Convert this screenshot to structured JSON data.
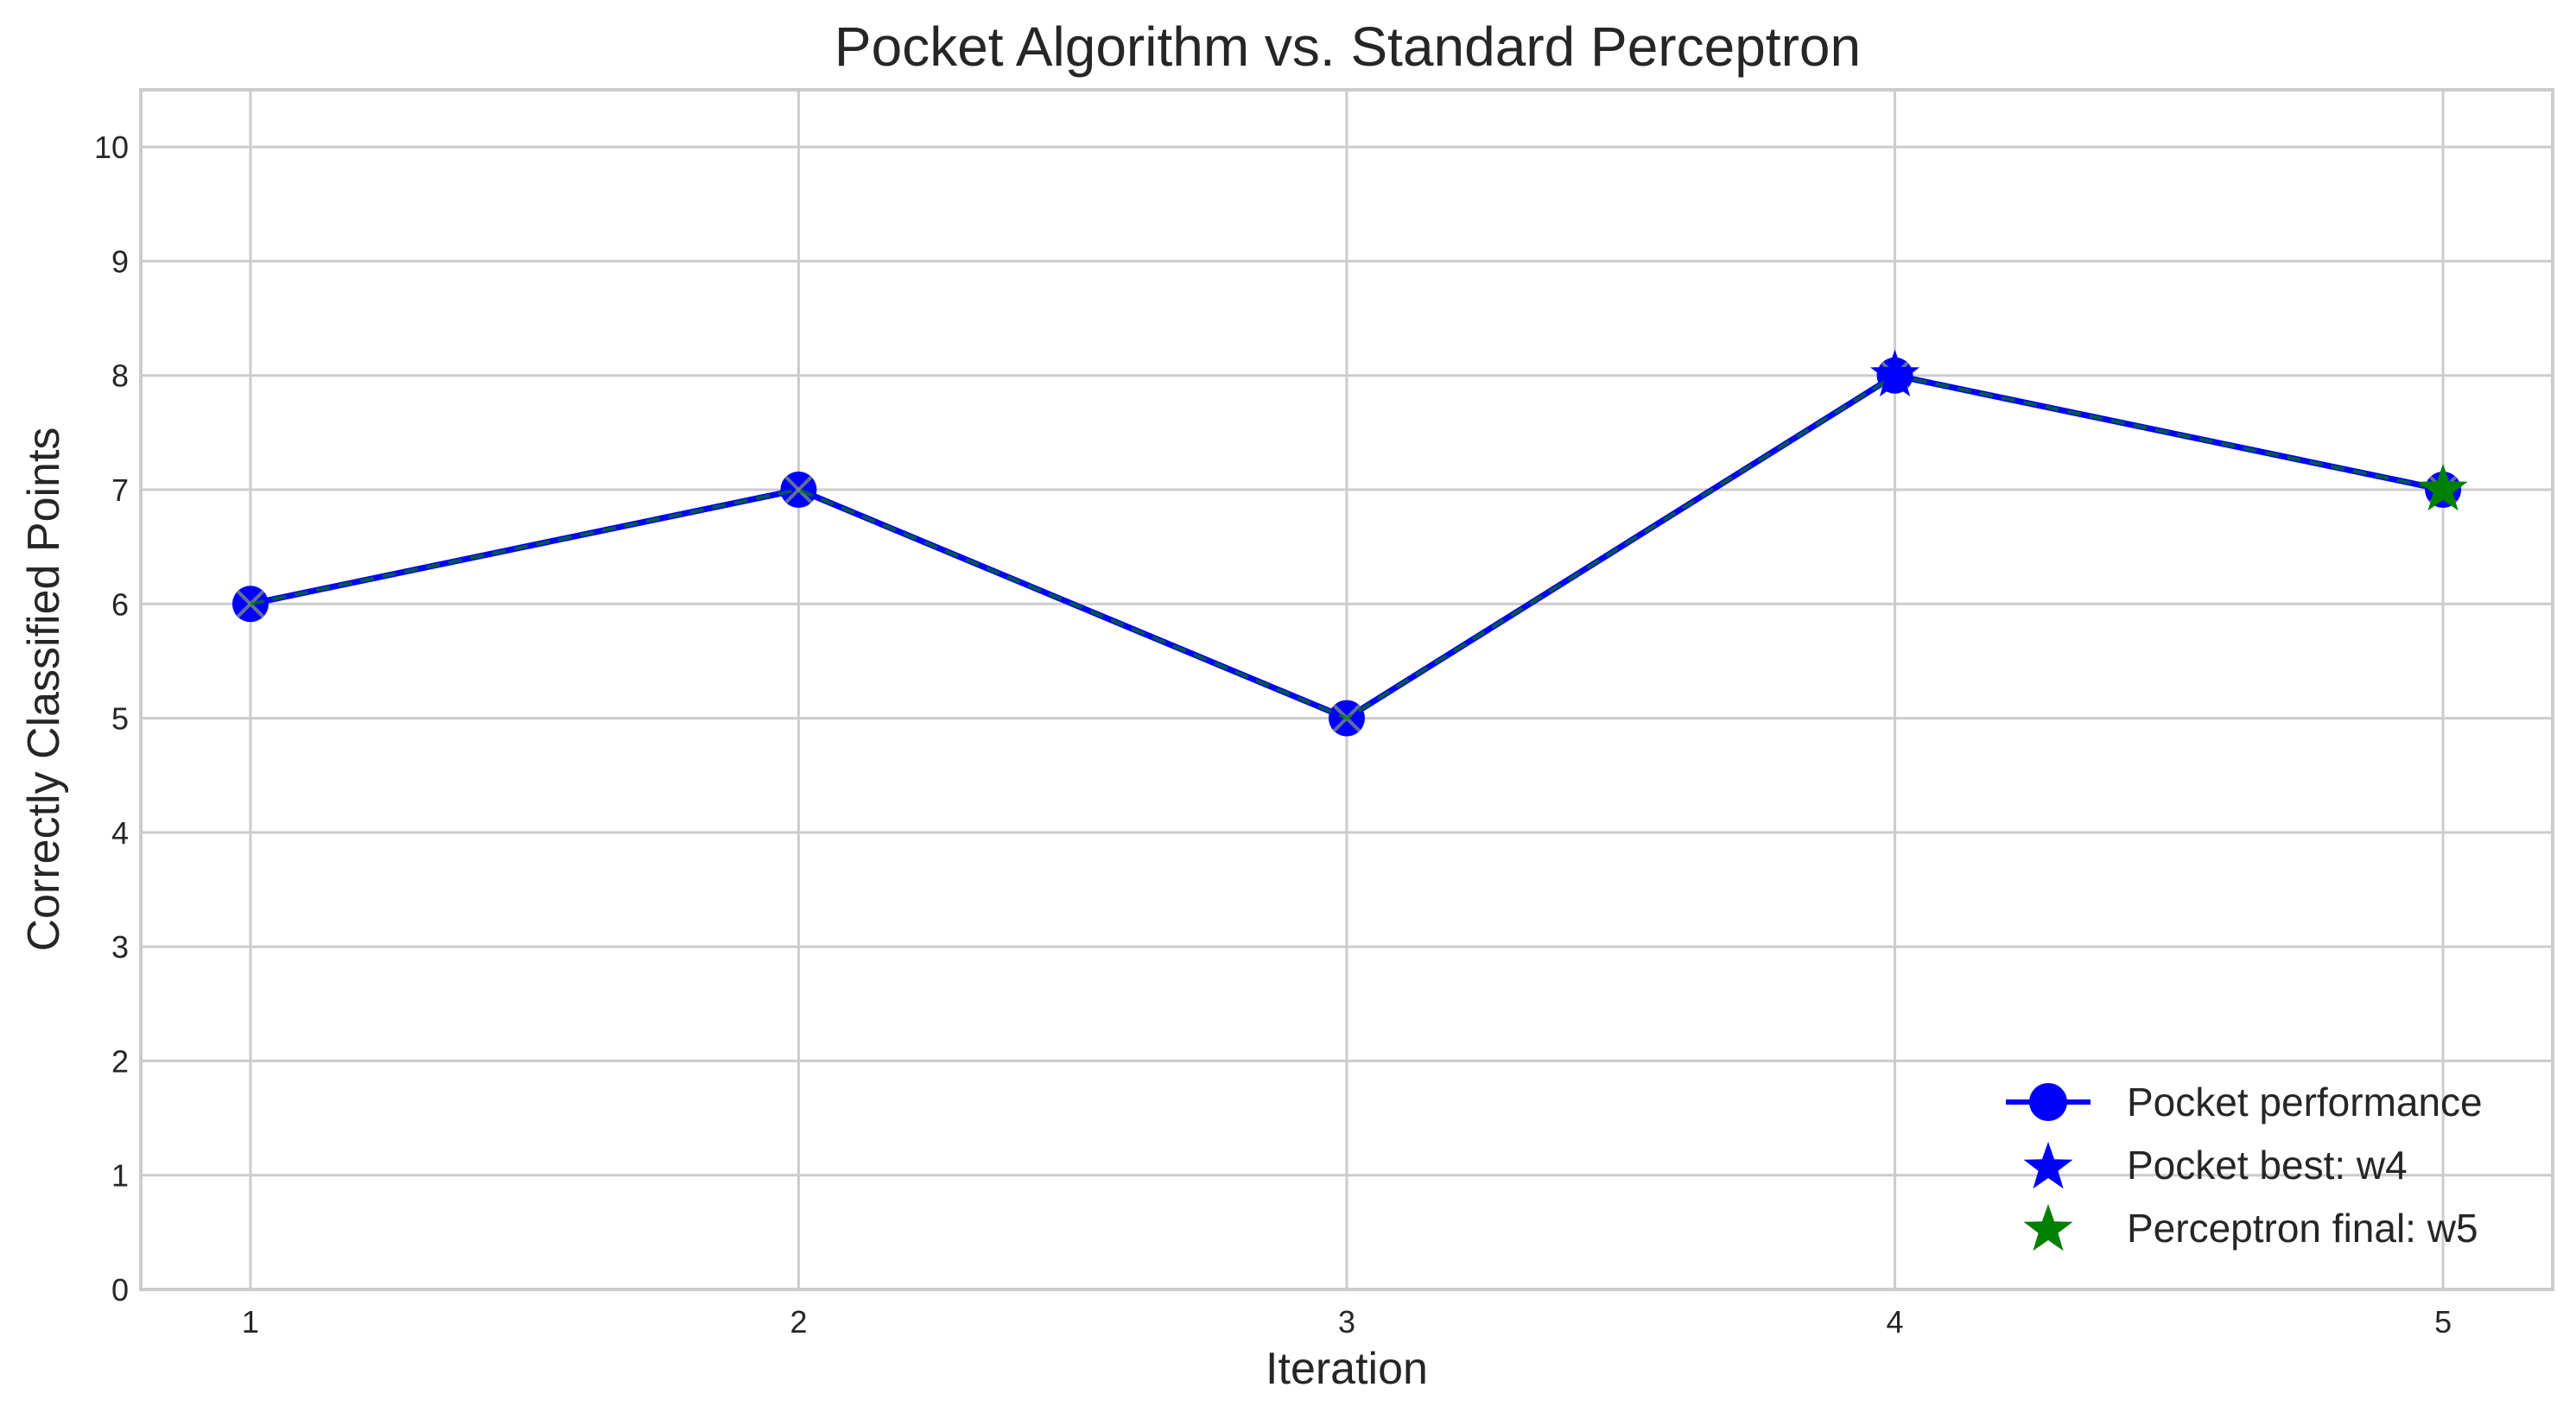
{
  "chart_data": {
    "type": "line",
    "title": "Pocket Algorithm vs. Standard Perceptron",
    "xlabel": "Iteration",
    "ylabel": "Correctly Classified Points",
    "x": [
      1,
      2,
      3,
      4,
      5
    ],
    "xlim": [
      0.8,
      5.2
    ],
    "ylim": [
      0,
      10.5
    ],
    "xticks": [
      1,
      2,
      3,
      4,
      5
    ],
    "yticks": [
      0,
      1,
      2,
      3,
      4,
      5,
      6,
      7,
      8,
      9,
      10
    ],
    "grid": true,
    "legend_position": "bottom-right",
    "series": [
      {
        "name": "Pocket performance",
        "values": [
          6,
          7,
          5,
          8,
          7
        ],
        "color": "#0000ff",
        "marker": "circle"
      },
      {
        "name": "",
        "values": [
          6,
          7,
          5,
          8,
          7
        ],
        "color": "#008000",
        "style": "dashed",
        "marker": "x"
      }
    ],
    "highlights": [
      {
        "name": "Pocket best: w4",
        "x": 4,
        "y": 8,
        "color": "#0000ff",
        "marker": "star"
      },
      {
        "name": "Perceptron final: w5",
        "x": 5,
        "y": 7,
        "color": "#008000",
        "marker": "star"
      }
    ]
  }
}
